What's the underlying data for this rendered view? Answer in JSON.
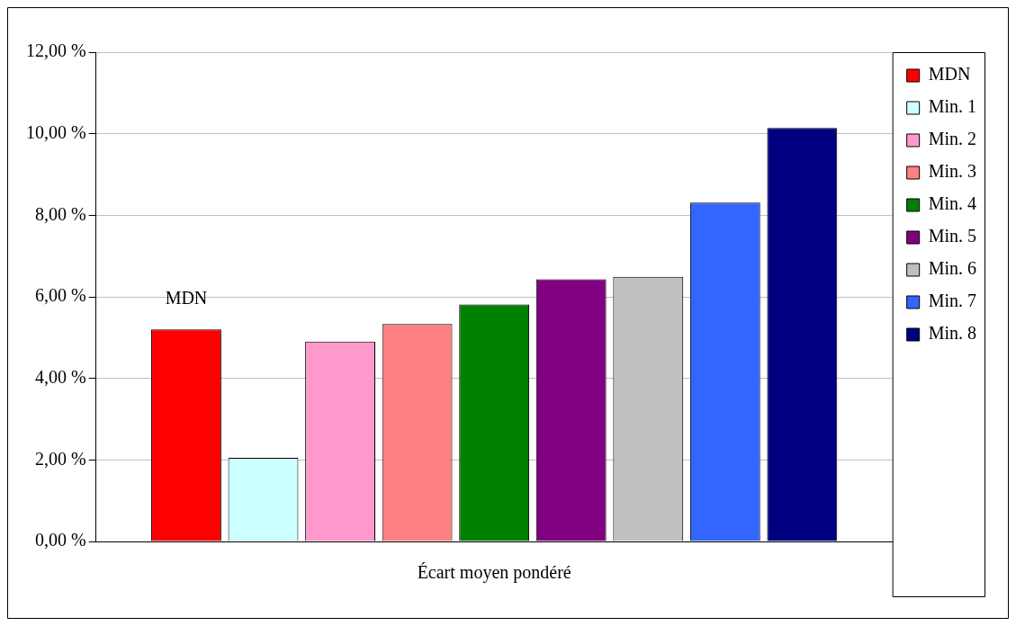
{
  "chart_data": {
    "type": "bar",
    "categories": [
      "Écart moyen pondéré"
    ],
    "series": [
      {
        "name": "MDN",
        "color": "#ff0000",
        "values": [
          5.2
        ]
      },
      {
        "name": "Min. 1",
        "color": "#ccffff",
        "values": [
          2.05
        ]
      },
      {
        "name": "Min. 2",
        "color": "#ff99cc",
        "values": [
          4.9
        ]
      },
      {
        "name": "Min. 3",
        "color": "#ff8080",
        "values": [
          5.33
        ]
      },
      {
        "name": "Min. 4",
        "color": "#008000",
        "values": [
          5.81
        ]
      },
      {
        "name": "Min. 5",
        "color": "#800080",
        "values": [
          6.43
        ]
      },
      {
        "name": "Min. 6",
        "color": "#c0c0c0",
        "values": [
          6.49
        ]
      },
      {
        "name": "Min. 7",
        "color": "#3366ff",
        "values": [
          8.31
        ]
      },
      {
        "name": "Min. 8",
        "color": "#000080",
        "values": [
          10.14
        ]
      }
    ],
    "ylim": [
      0,
      12
    ],
    "yticks": [
      {
        "value": 0,
        "label": "0,00 %"
      },
      {
        "value": 2,
        "label": "2,00 %"
      },
      {
        "value": 4,
        "label": "4,00 %"
      },
      {
        "value": 6,
        "label": "6,00 %"
      },
      {
        "value": 8,
        "label": "8,00 %"
      },
      {
        "value": 10,
        "label": "10,00 %"
      },
      {
        "value": 12,
        "label": "12,00 %"
      }
    ],
    "grid": "y",
    "legend": "right",
    "annotations": [
      "MDN"
    ]
  }
}
